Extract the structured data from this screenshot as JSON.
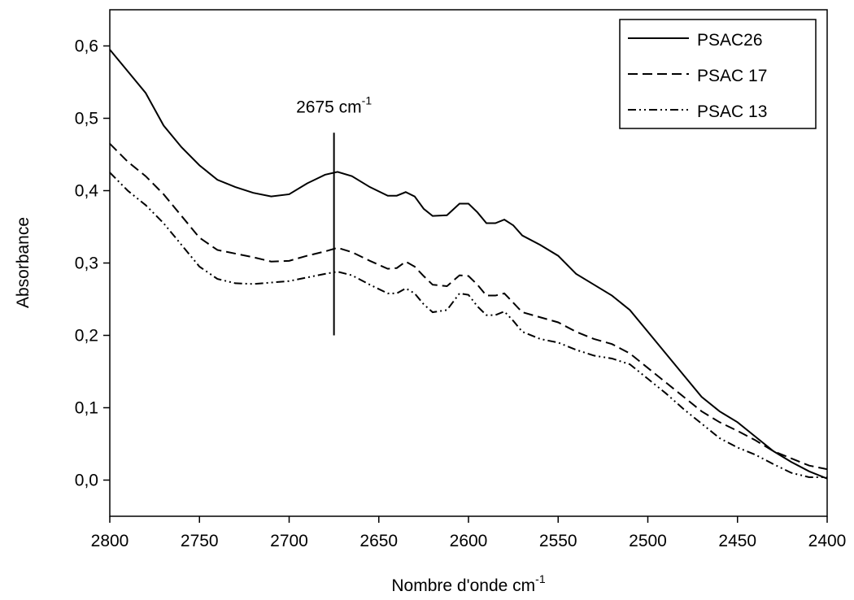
{
  "chart_data": {
    "type": "line",
    "xlabel": {
      "text": "Nombre d'onde cm",
      "sup": "-1"
    },
    "ylabel": "Absorbance",
    "x": [
      2800,
      2790,
      2780,
      2770,
      2760,
      2750,
      2740,
      2730,
      2720,
      2710,
      2700,
      2690,
      2680,
      2673,
      2665,
      2655,
      2645,
      2640,
      2635,
      2630,
      2625,
      2620,
      2612,
      2605,
      2600,
      2595,
      2590,
      2585,
      2580,
      2575,
      2570,
      2560,
      2550,
      2540,
      2530,
      2520,
      2510,
      2500,
      2490,
      2480,
      2470,
      2460,
      2450,
      2440,
      2430,
      2420,
      2410,
      2400
    ],
    "series": [
      {
        "name": "PSAC26",
        "color": "#000000",
        "dash": "solid",
        "values": [
          0.595,
          0.565,
          0.535,
          0.49,
          0.46,
          0.435,
          0.415,
          0.405,
          0.397,
          0.392,
          0.395,
          0.41,
          0.422,
          0.426,
          0.42,
          0.405,
          0.393,
          0.393,
          0.398,
          0.392,
          0.375,
          0.365,
          0.366,
          0.382,
          0.382,
          0.37,
          0.355,
          0.355,
          0.36,
          0.352,
          0.338,
          0.325,
          0.31,
          0.285,
          0.27,
          0.255,
          0.235,
          0.205,
          0.175,
          0.145,
          0.115,
          0.095,
          0.08,
          0.06,
          0.04,
          0.025,
          0.012,
          0.002
        ]
      },
      {
        "name": "PSAC 17",
        "color": "#000000",
        "dash": "dashed",
        "values": [
          0.465,
          0.44,
          0.42,
          0.395,
          0.365,
          0.335,
          0.318,
          0.313,
          0.308,
          0.302,
          0.303,
          0.31,
          0.316,
          0.321,
          0.315,
          0.303,
          0.292,
          0.293,
          0.302,
          0.295,
          0.282,
          0.27,
          0.268,
          0.283,
          0.282,
          0.27,
          0.255,
          0.255,
          0.258,
          0.245,
          0.232,
          0.225,
          0.218,
          0.205,
          0.195,
          0.188,
          0.175,
          0.155,
          0.135,
          0.115,
          0.095,
          0.08,
          0.068,
          0.055,
          0.04,
          0.03,
          0.02,
          0.015
        ]
      },
      {
        "name": "PSAC 13",
        "color": "#000000",
        "dash": "dashdotdot",
        "values": [
          0.425,
          0.4,
          0.38,
          0.355,
          0.325,
          0.295,
          0.278,
          0.272,
          0.271,
          0.273,
          0.275,
          0.28,
          0.285,
          0.288,
          0.283,
          0.27,
          0.258,
          0.258,
          0.265,
          0.258,
          0.243,
          0.232,
          0.235,
          0.258,
          0.256,
          0.24,
          0.228,
          0.228,
          0.233,
          0.22,
          0.205,
          0.195,
          0.19,
          0.18,
          0.172,
          0.168,
          0.16,
          0.14,
          0.12,
          0.098,
          0.078,
          0.058,
          0.045,
          0.035,
          0.022,
          0.01,
          0.004,
          0.004
        ]
      }
    ],
    "xlim": [
      2800,
      2400
    ],
    "xticks": [
      2800,
      2750,
      2700,
      2650,
      2600,
      2550,
      2500,
      2450,
      2400
    ],
    "ylim": [
      -0.05,
      0.65
    ],
    "yticks": [
      {
        "value": 0,
        "label": "0,0"
      },
      {
        "value": 0.1,
        "label": "0,1"
      },
      {
        "value": 0.2,
        "label": "0,2"
      },
      {
        "value": 0.3,
        "label": "0,3"
      },
      {
        "value": 0.4,
        "label": "0,4"
      },
      {
        "value": 0.5,
        "label": "0,5"
      },
      {
        "value": 0.6,
        "label": "0,6"
      }
    ],
    "annotations": [
      {
        "text": "2675 cm",
        "sup": "-1",
        "x": 2675,
        "y": [
          0.2,
          0.48
        ]
      }
    ],
    "legend": "top-right",
    "grid": false
  }
}
